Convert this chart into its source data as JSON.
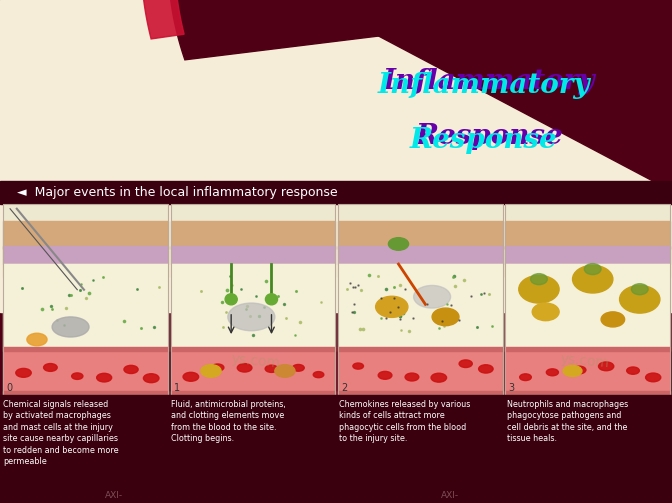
{
  "title_line1": "Inflammatory",
  "title_line2": "Response",
  "title_color": "#00E8E8",
  "title_shadow_color": "#6600AA",
  "bullet_text": "◄  Major events in the local inflammatory response",
  "bullet_color": "#FFFFFF",
  "bg_cream": "#F5EDD8",
  "bg_dark": "#500015",
  "arc_color": "#8B0020",
  "arc_stripe": "#CC1133",
  "panel_bg": "#F0E8D0",
  "panel_bg2": "#E8F0E8",
  "caption1": "Chemical signals released\nby activated macrophages\nand mast cells at the injury\nsite cause nearby capillaries\nto redden and become more\npermeable",
  "caption2": "Fluid, antimicrobial proteins,\nand clotting elements move\nfrom the blood to the site.\nClotting begins.",
  "caption3": "Chemokines released by various\nkinds of cells attract more\nphagocytic cells from the blood\nto the injury site.",
  "caption4": "Neutrophils and macrophages\nphagocytose pathogens and\ncell debris at the site, and the\ntissue heals.",
  "caption_color": "#FFFFFF",
  "caption_fontsize": 5.8,
  "watermark": "ys.com",
  "watermark_color": "#AA9966",
  "figsize": [
    6.72,
    5.03
  ],
  "dpi": 100
}
